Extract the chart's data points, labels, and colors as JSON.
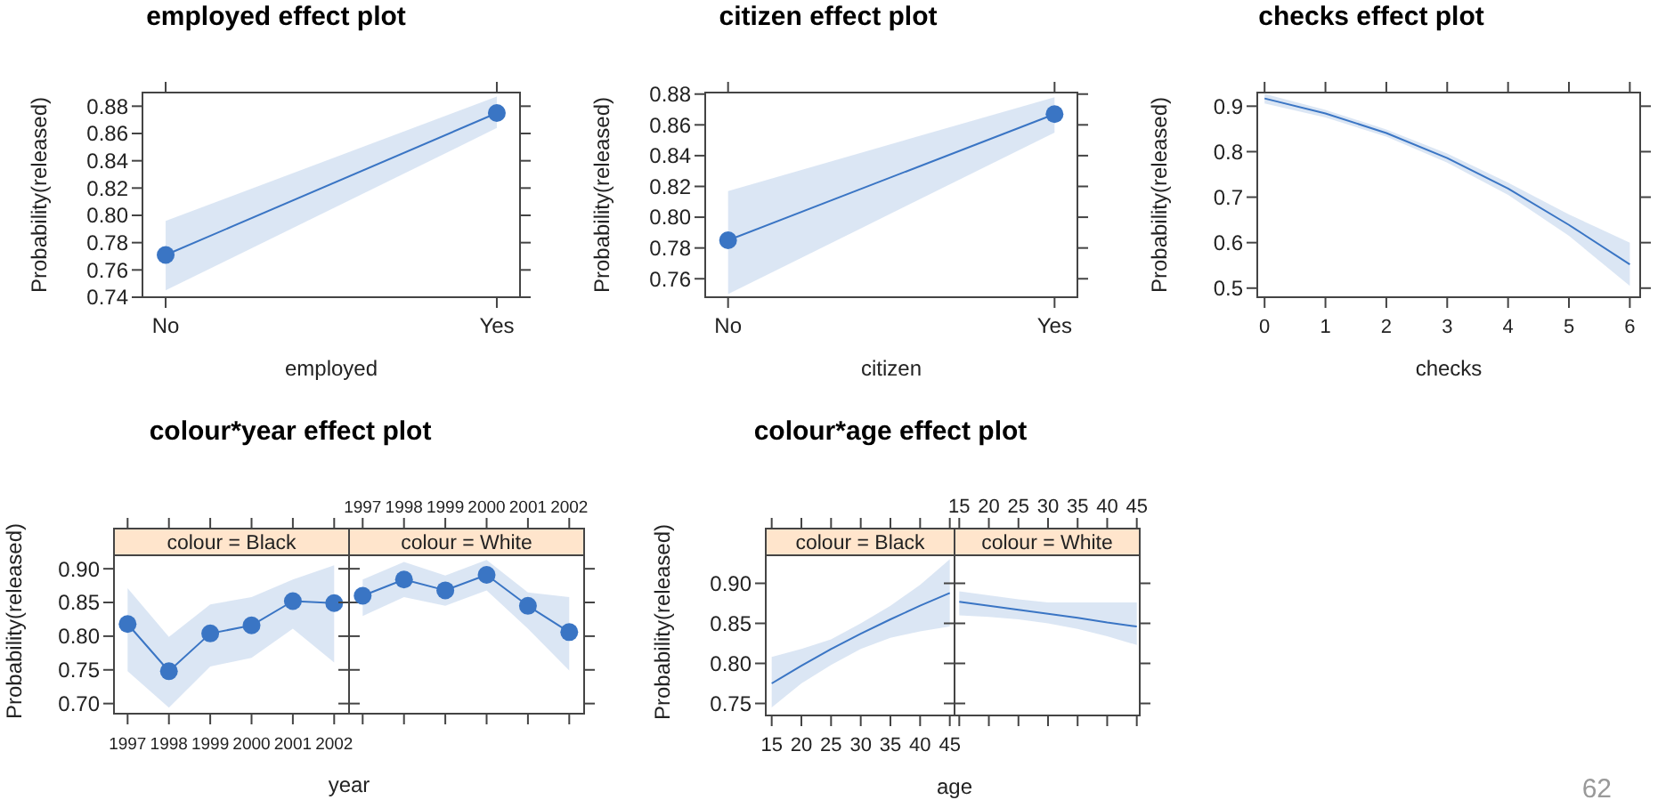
{
  "chart_data": [
    {
      "type": "line",
      "title": "employed effect plot",
      "xlabel": "employed",
      "ylabel": "Probability(released)",
      "categories": [
        "No",
        "Yes"
      ],
      "ylim": [
        0.74,
        0.89
      ],
      "yticks": [
        0.74,
        0.76,
        0.78,
        {
          "value": 0.8,
          "label": "0.80"
        },
        0.82,
        0.84,
        0.86,
        0.88
      ],
      "marker": "circle",
      "series": [
        {
          "color": "#3a75c4",
          "values": [
            0.771,
            0.875
          ],
          "lower": [
            0.745,
            0.864
          ],
          "upper": [
            0.796,
            0.887
          ]
        }
      ]
    },
    {
      "type": "line",
      "title": "citizen effect plot",
      "xlabel": "citizen",
      "ylabel": "Probability(released)",
      "categories": [
        "No",
        "Yes"
      ],
      "ylim": [
        0.748,
        0.881
      ],
      "yticks": [
        0.76,
        0.78,
        {
          "value": 0.8,
          "label": "0.80"
        },
        0.82,
        0.84,
        0.86,
        0.88
      ],
      "marker": "circle",
      "series": [
        {
          "color": "#3a75c4",
          "values": [
            0.785,
            0.867
          ],
          "lower": [
            0.75,
            0.855
          ],
          "upper": [
            0.817,
            0.878
          ]
        }
      ]
    },
    {
      "type": "line",
      "title": "checks effect plot",
      "xlabel": "checks",
      "ylabel": "Probability(released)",
      "x": [
        0,
        1,
        2,
        3,
        4,
        5,
        6
      ],
      "xlim": [
        -0.12,
        6.17
      ],
      "xticks": [
        0,
        1,
        2,
        3,
        4,
        5,
        6
      ],
      "ylim": [
        0.48,
        0.93
      ],
      "yticks": [
        0.5,
        0.6,
        0.7,
        0.8,
        0.9
      ],
      "marker": "none",
      "series": [
        {
          "color": "#3a75c4",
          "values": [
            0.917,
            0.884,
            0.841,
            0.786,
            0.719,
            0.639,
            0.552
          ],
          "lower": [
            0.906,
            0.875,
            0.833,
            0.776,
            0.705,
            0.615,
            0.505
          ],
          "upper": [
            0.927,
            0.892,
            0.849,
            0.796,
            0.732,
            0.662,
            0.6
          ]
        }
      ]
    },
    {
      "type": "line",
      "title": "colour*year effect plot",
      "subtitle": "colour = Black",
      "xlabel": "year",
      "ylabel": "Probability(released)",
      "x": [
        1997,
        1998,
        1999,
        2000,
        2001,
        2002
      ],
      "xlim": [
        1996.67,
        2002.36
      ],
      "xticks": [
        1997,
        1998,
        1999,
        2000,
        2001,
        2002
      ],
      "ylim": [
        0.685,
        0.92
      ],
      "yticks": [
        {
          "value": 0.7,
          "label": "0.70"
        },
        0.75,
        {
          "value": 0.8,
          "label": "0.80"
        },
        0.85,
        {
          "value": 0.9,
          "label": "0.90"
        }
      ],
      "marker": "circle",
      "series": [
        {
          "color": "#3a75c4",
          "values": [
            0.818,
            0.748,
            0.804,
            0.816,
            0.852,
            0.849
          ],
          "lower": [
            0.748,
            0.694,
            0.755,
            0.768,
            0.811,
            0.761
          ],
          "upper": [
            0.871,
            0.799,
            0.847,
            0.858,
            0.884,
            0.905
          ]
        }
      ]
    },
    {
      "type": "line",
      "subtitle": "colour = White",
      "x": [
        1997,
        1998,
        1999,
        2000,
        2001,
        2002
      ],
      "xlim": [
        1996.67,
        2002.36
      ],
      "xticks": [
        1997,
        1998,
        1999,
        2000,
        2001,
        2002
      ],
      "ylim": [
        0.685,
        0.92
      ],
      "yticks": [
        0.7,
        0.75,
        0.8,
        0.85,
        0.9
      ],
      "tick_labels": "x",
      "marker": "circle",
      "series": [
        {
          "color": "#3a75c4",
          "values": [
            0.86,
            0.884,
            0.868,
            0.891,
            0.845,
            0.806
          ],
          "lower": [
            0.83,
            0.858,
            0.845,
            0.868,
            0.811,
            0.749
          ],
          "upper": [
            0.884,
            0.91,
            0.89,
            0.913,
            0.865,
            0.858
          ]
        }
      ]
    },
    {
      "type": "line",
      "title": "colour*age effect plot",
      "subtitle": "colour = Black",
      "xlabel": "age",
      "ylabel": "Probability(released)",
      "x": [
        15,
        20,
        25,
        30,
        35,
        40,
        45
      ],
      "xlim": [
        14,
        45.8
      ],
      "xticks": [
        15,
        20,
        25,
        30,
        35,
        40,
        45
      ],
      "ylim": [
        0.735,
        0.935
      ],
      "yticks": [
        0.75,
        {
          "value": 0.8,
          "label": "0.80"
        },
        0.85,
        {
          "value": 0.9,
          "label": "0.90"
        }
      ],
      "marker": "none",
      "series": [
        {
          "color": "#3a75c4",
          "values": [
            0.775,
            0.797,
            0.818,
            0.837,
            0.855,
            0.872,
            0.888
          ],
          "lower": [
            0.745,
            0.775,
            0.798,
            0.818,
            0.832,
            0.84,
            0.846
          ],
          "upper": [
            0.808,
            0.818,
            0.83,
            0.85,
            0.872,
            0.898,
            0.93
          ]
        }
      ]
    },
    {
      "type": "line",
      "subtitle": "colour = White",
      "annotations": [
        "62"
      ],
      "x": [
        15,
        20,
        25,
        30,
        35,
        40,
        45
      ],
      "xlim": [
        14.2,
        45.5
      ],
      "xticks": [
        15,
        20,
        25,
        30,
        35,
        40,
        45
      ],
      "ylim": [
        0.735,
        0.935
      ],
      "yticks": [
        0.75,
        0.8,
        0.85,
        0.9
      ],
      "tick_labels": "x",
      "marker": "none",
      "series": [
        {
          "color": "#3a75c4",
          "values": [
            0.877,
            0.872,
            0.867,
            0.862,
            0.857,
            0.851,
            0.846
          ],
          "lower": [
            0.86,
            0.858,
            0.855,
            0.85,
            0.843,
            0.834,
            0.823
          ],
          "upper": [
            0.89,
            0.885,
            0.88,
            0.876,
            0.876,
            0.876,
            0.876
          ]
        }
      ]
    }
  ]
}
